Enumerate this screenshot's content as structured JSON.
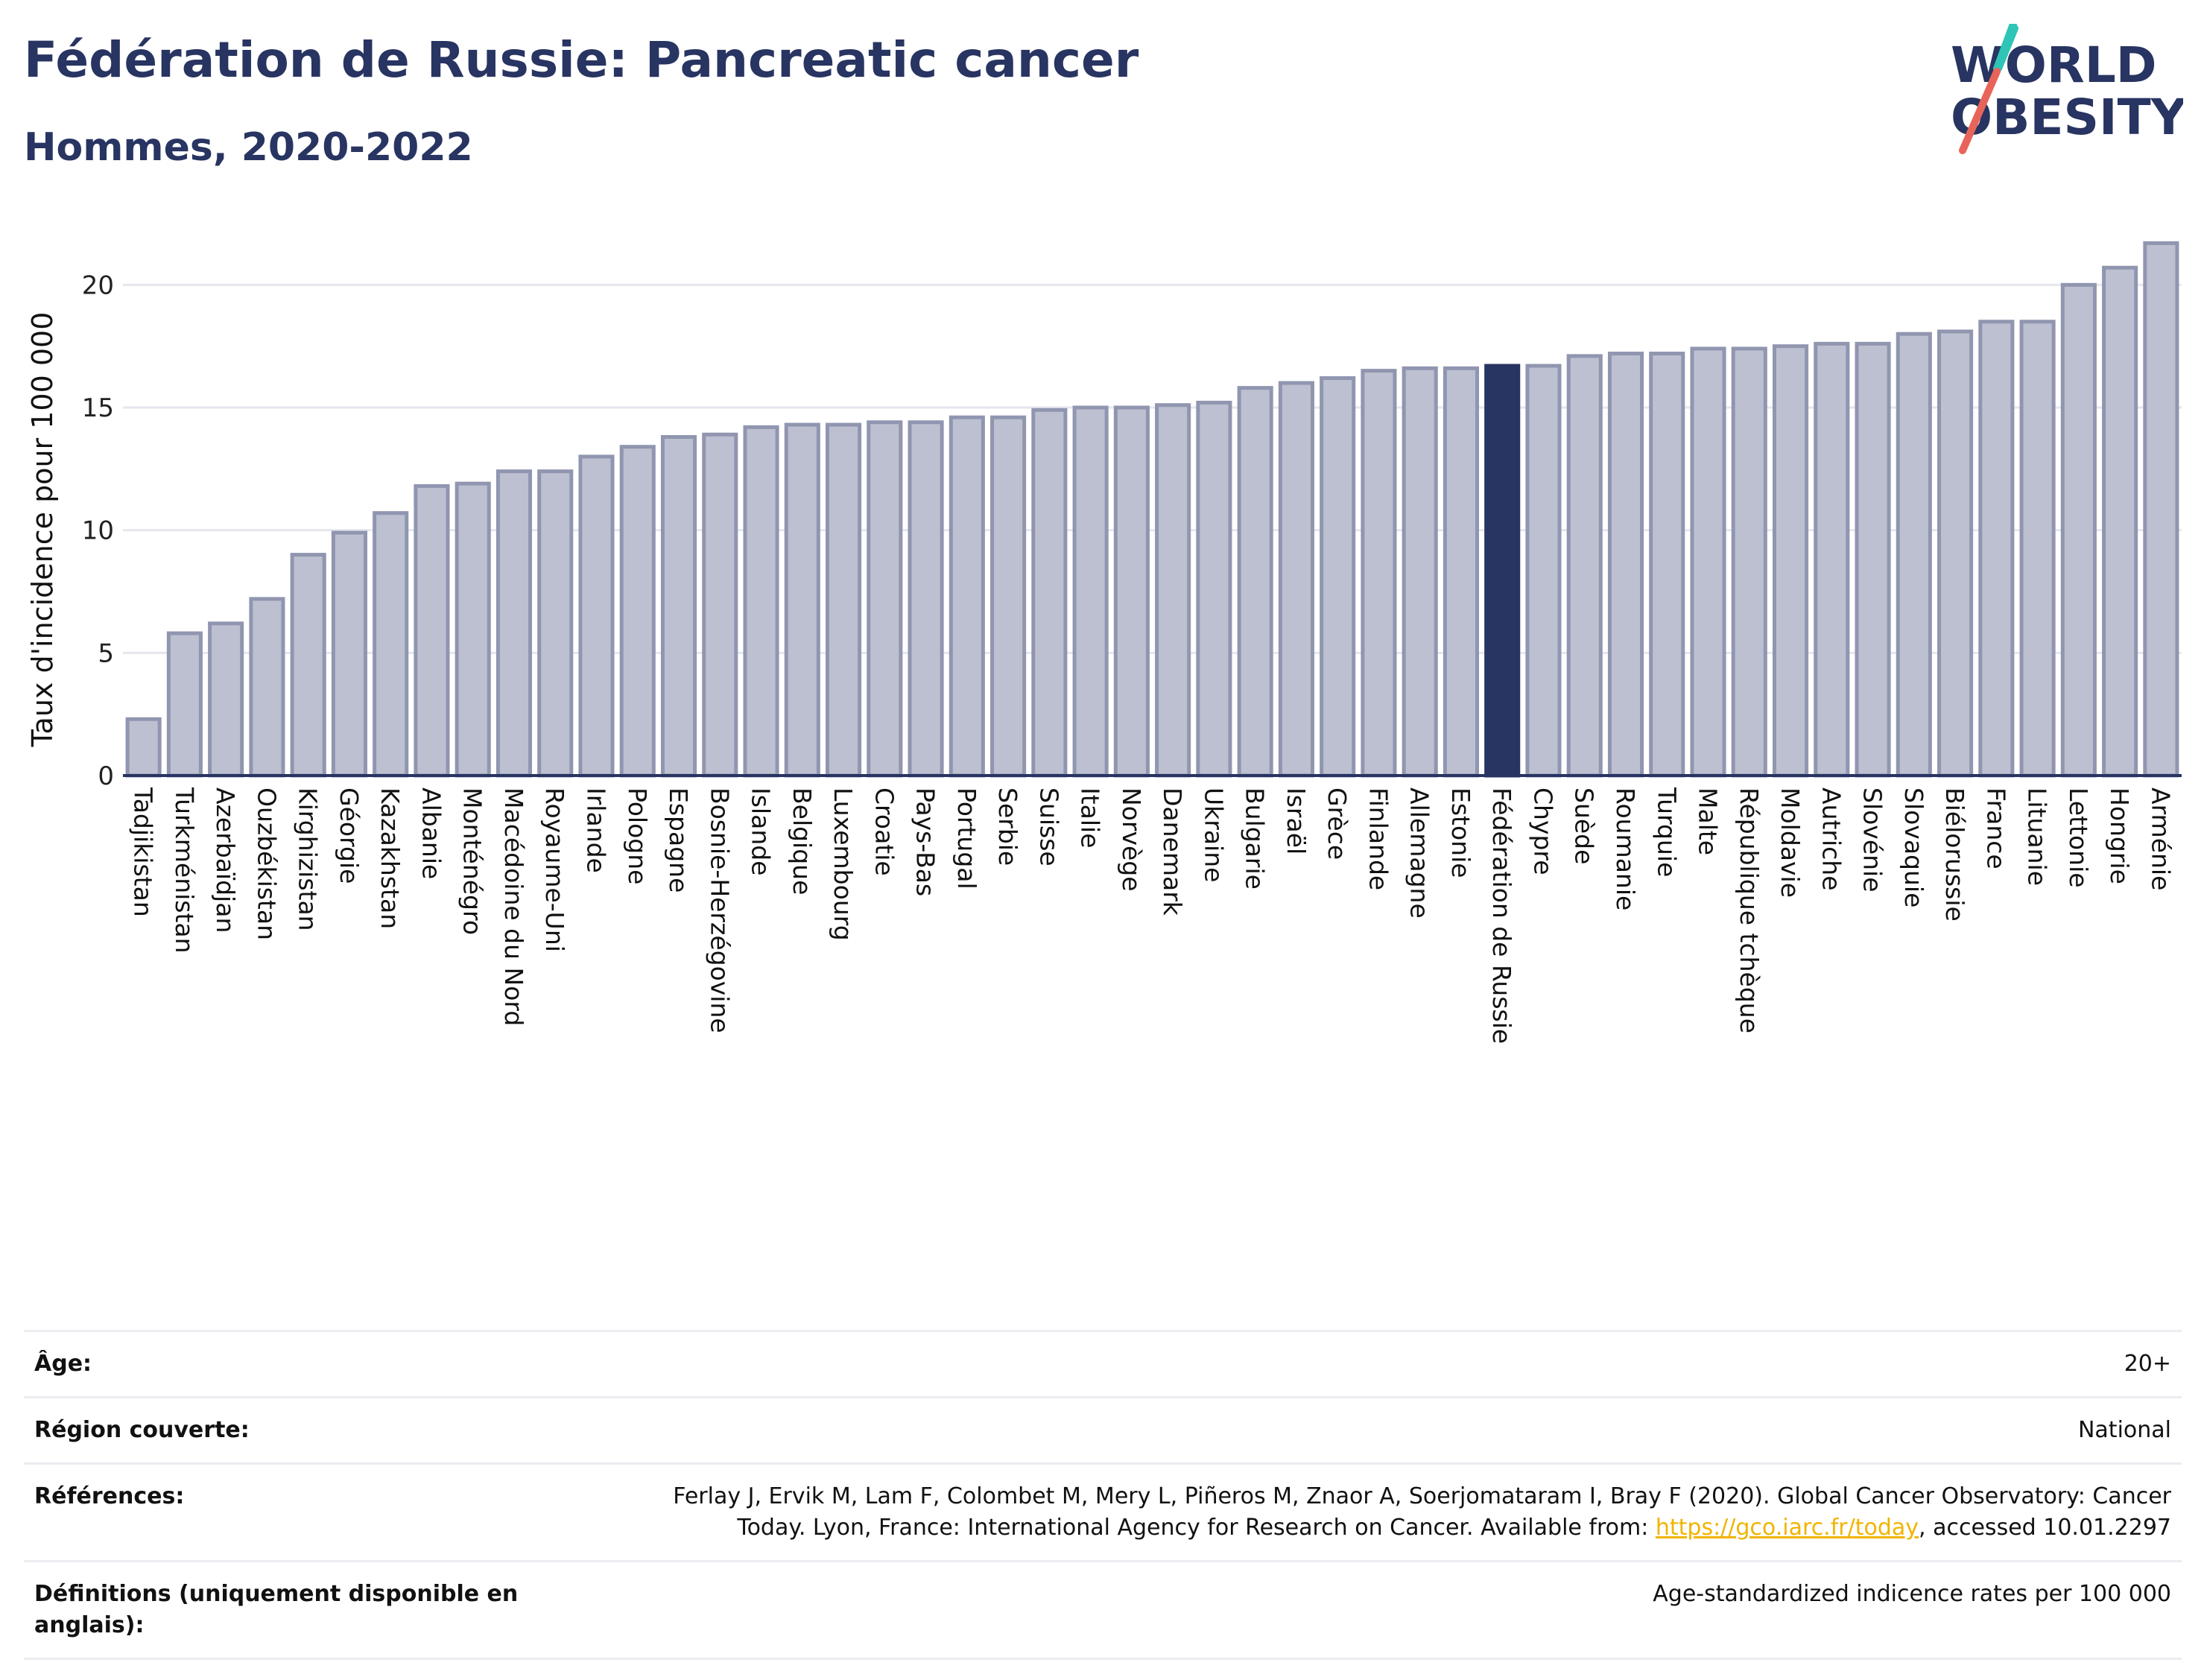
{
  "header": {
    "title": "Fédération de Russie: Pancreatic cancer",
    "subtitle": "Hommes, 2020-2022"
  },
  "logo": {
    "line1": "WORLD",
    "line2": "OBESITY",
    "colors": {
      "text": "#283461",
      "slash_teal": "#2ec4b6",
      "slash_red": "#e8645a"
    }
  },
  "colors": {
    "bar_fill": "#bcc0d0",
    "bar_stroke": "#9096b0",
    "highlight": "#283461",
    "grid": "#e6e6ee",
    "axis": "#283461"
  },
  "chart_data": {
    "type": "bar",
    "ylabel": "Taux d'incidence pour 100 000",
    "xlabel": "",
    "ylim": [
      0,
      22.5
    ],
    "yticks": [
      0,
      5,
      10,
      15,
      20
    ],
    "grid": true,
    "highlight_category": "Fédération de Russie",
    "categories": [
      "Tadjikistan",
      "Turkménistan",
      "Azerbaïdjan",
      "Ouzbékistan",
      "Kirghizistan",
      "Géorgie",
      "Kazakhstan",
      "Albanie",
      "Monténégro",
      "Macédoine du Nord",
      "Royaume-Uni",
      "Irlande",
      "Pologne",
      "Espagne",
      "Bosnie-Herzégovine",
      "Islande",
      "Belgique",
      "Luxembourg",
      "Croatie",
      "Pays-Bas",
      "Portugal",
      "Serbie",
      "Suisse",
      "Italie",
      "Norvège",
      "Danemark",
      "Ukraine",
      "Bulgarie",
      "Israël",
      "Grèce",
      "Finlande",
      "Allemagne",
      "Estonie",
      "Fédération de Russie",
      "Chypre",
      "Suède",
      "Roumanie",
      "Turquie",
      "Malte",
      "République tchèque",
      "Moldavie",
      "Autriche",
      "Slovénie",
      "Slovaquie",
      "Biélorussie",
      "France",
      "Lituanie",
      "Lettonie",
      "Hongrie",
      "Arménie"
    ],
    "values": [
      2.3,
      5.8,
      6.2,
      7.2,
      9.0,
      9.9,
      10.7,
      11.8,
      11.9,
      12.4,
      12.4,
      13.0,
      13.4,
      13.8,
      13.9,
      14.2,
      14.3,
      14.3,
      14.4,
      14.4,
      14.6,
      14.6,
      14.9,
      15.0,
      15.0,
      15.1,
      15.2,
      15.8,
      16.0,
      16.2,
      16.5,
      16.6,
      16.6,
      16.7,
      16.7,
      17.1,
      17.2,
      17.2,
      17.4,
      17.4,
      17.5,
      17.6,
      17.6,
      18.0,
      18.1,
      18.5,
      18.5,
      20.0,
      20.7,
      21.7
    ]
  },
  "info": {
    "age_label": "Âge:",
    "age_value": "20+",
    "region_label": "Région couverte:",
    "region_value": "National",
    "refs_label": "Références:",
    "refs_text_1": "Ferlay J, Ervik M, Lam F, Colombet M, Mery L, Piñeros M, Znaor A, Soerjomataram I, Bray F (2020). Global Cancer Observatory: Cancer Today. Lyon, France: International Agency for Research on Cancer. Available from: ",
    "refs_link": "https://gco.iarc.fr/today",
    "refs_text_2": ", accessed 10.01.2297",
    "defs_label": "Définitions (uniquement disponible en anglais):",
    "defs_value": "Age-standardized indicence rates per 100 000"
  }
}
